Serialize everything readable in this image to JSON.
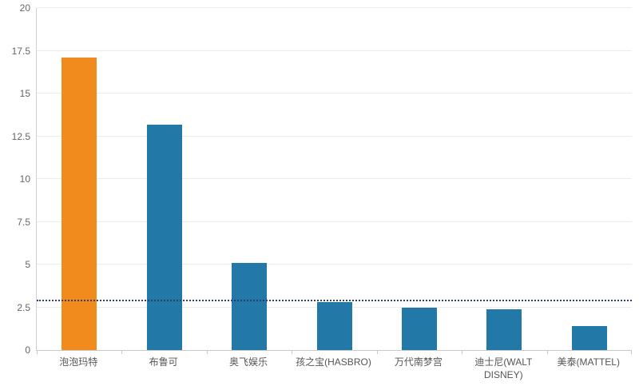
{
  "chart_data": {
    "type": "bar",
    "title": "",
    "xlabel": "",
    "ylabel": "",
    "categories": [
      "泡泡玛特",
      "布鲁可",
      "奥飞娱乐",
      "孩之宝(HASBRO)",
      "万代南梦宫",
      "迪士尼(WALT DISNEY)",
      "美泰(MATTEL)"
    ],
    "values": [
      17.1,
      13.2,
      5.1,
      2.8,
      2.5,
      2.4,
      1.4
    ],
    "bar_colors": [
      "#f28b1e",
      "#2279a7",
      "#2279a7",
      "#2279a7",
      "#2279a7",
      "#2279a7",
      "#2279a7"
    ],
    "ylim": [
      0,
      20
    ],
    "yticks": [
      0,
      2.5,
      5,
      7.5,
      10,
      12.5,
      15,
      17.5,
      20
    ],
    "grid": true,
    "legend": false,
    "reference_line": {
      "value": 2.85,
      "style": "dotted",
      "color": "#2b3c6e"
    },
    "colors": {
      "highlight_bar": "#f28b1e",
      "default_bar": "#2279a7",
      "gridline": "#ebebeb",
      "axis": "#c8c8c8",
      "tick_label": "#666666"
    }
  }
}
